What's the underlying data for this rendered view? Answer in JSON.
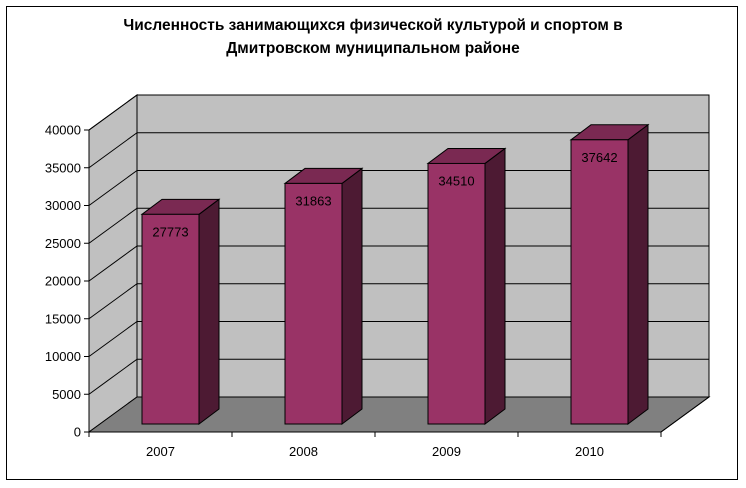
{
  "chart_data": {
    "type": "bar",
    "title_lines": [
      "Численность занимающихся физической культурой и спортом в",
      "Дмитровском муниципальном районе"
    ],
    "categories": [
      "2007",
      "2008",
      "2009",
      "2010"
    ],
    "values": [
      27773,
      31863,
      34510,
      37642
    ],
    "data_labels": [
      "27773",
      "31863",
      "34510",
      "37642"
    ],
    "y_ticks": [
      "0",
      "5000",
      "10000",
      "15000",
      "20000",
      "25000",
      "30000",
      "35000",
      "40000"
    ],
    "ylim": [
      0,
      40000
    ],
    "grid": true,
    "three_d": true,
    "colors": {
      "bar_front": "#993366",
      "bar_side": "#4d1a33",
      "bar_top": "#7a2952",
      "back_wall": "#c0c0c0",
      "side_wall": "#c0c0c0",
      "floor": "#808080"
    }
  }
}
